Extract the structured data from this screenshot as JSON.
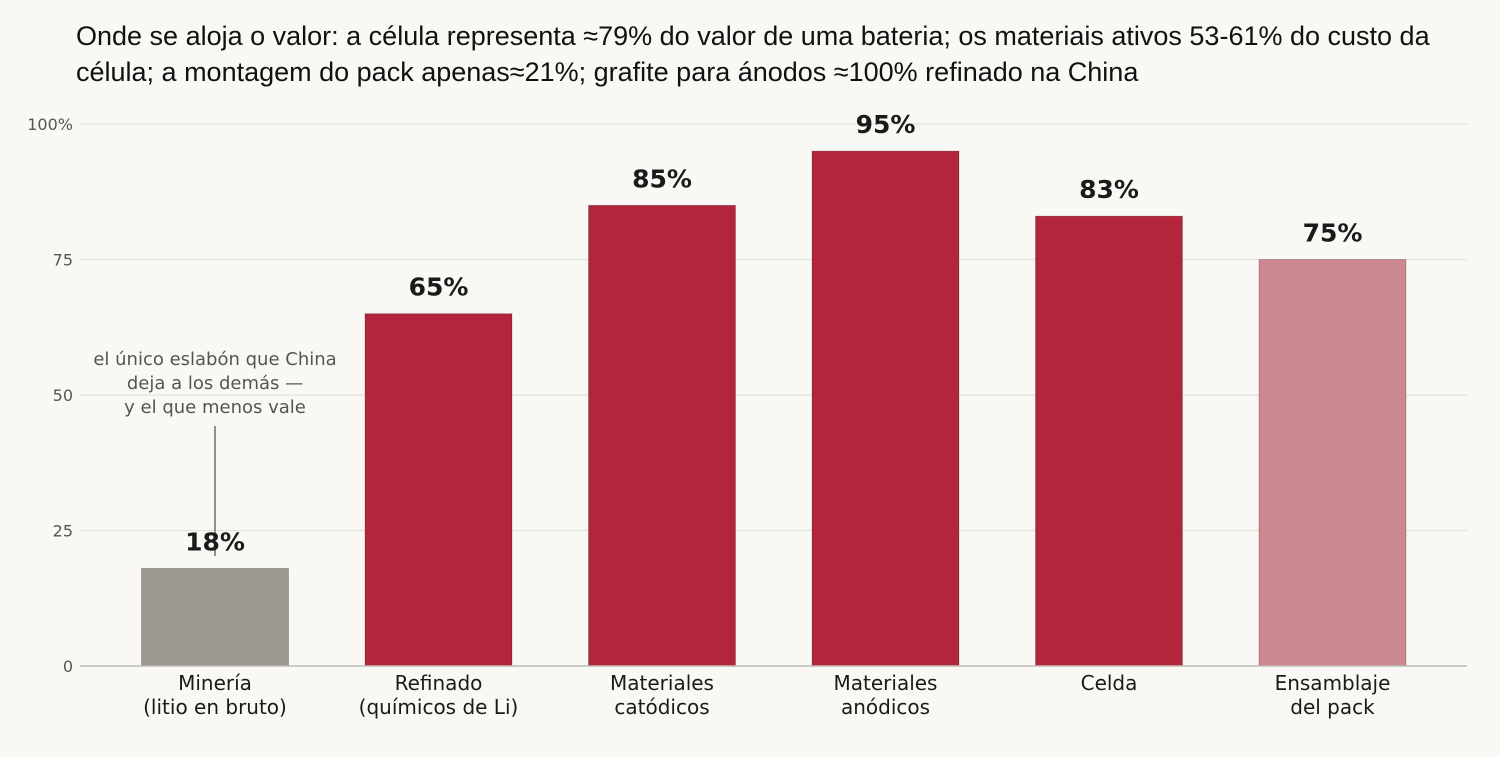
{
  "chart_data": {
    "type": "bar",
    "title": "Onde se aloja o valor:  a célula representa ≈79% do valor de uma bateria; os materiais ativos 53-61% do custo da célula; a montagem do pack apenas≈21%;  grafite para ánodos  ≈100% refinado na China",
    "xlabel": "",
    "ylabel": "",
    "ylim": [
      0,
      100
    ],
    "yticks": [
      0,
      25,
      50,
      75,
      100
    ],
    "ytick_labels": [
      "0",
      "25",
      "50",
      "75",
      "100%"
    ],
    "grid": true,
    "categories": [
      [
        "Minería",
        "(litio en bruto)"
      ],
      [
        "Refinado",
        "(químicos de Li)"
      ],
      [
        "Materiales",
        "catódicos"
      ],
      [
        "Materiales",
        "anódicos"
      ],
      [
        "Celda"
      ],
      [
        "Ensamblaje",
        "del pack"
      ]
    ],
    "values": [
      18,
      65,
      85,
      95,
      83,
      75
    ],
    "value_labels": [
      "18%",
      "65%",
      "85%",
      "95%",
      "83%",
      "75%"
    ],
    "bar_colors": [
      "#9c978f",
      "#b3253c",
      "#b3253c",
      "#b3253c",
      "#b3253c",
      "#cc8891"
    ],
    "annotation": {
      "lines": [
        "el único eslabón que China",
        "deja a los demás —",
        "y el que menos vale"
      ],
      "target_index": 0
    },
    "colors": {
      "background": "#f9f8f4",
      "grid": "#e4e2dd",
      "axis": "#bdbab4",
      "tick_text": "#555555",
      "value_text": "#1a1a1a",
      "category_text": "#1a1a1a",
      "annotation_text": "#555555",
      "annotation_line": "#8f8f8f"
    }
  }
}
